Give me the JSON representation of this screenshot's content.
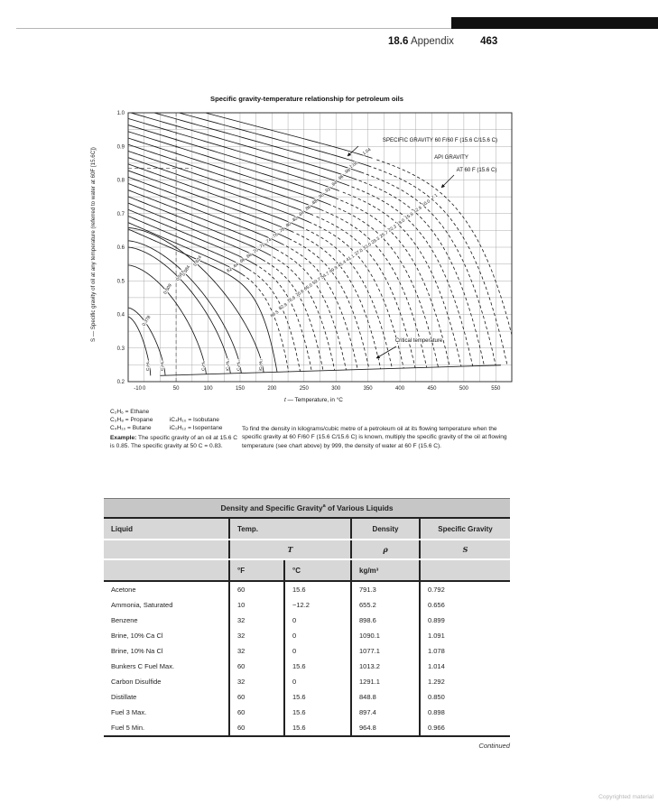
{
  "header": {
    "section": "18.6",
    "title": "Appendix",
    "page_number": "463"
  },
  "chart_data": {
    "type": "line",
    "title": "Specific gravity-temperature relationship for petroleum oils",
    "xlabel": "t — Temperature, in °C",
    "ylabel": "S — Specific gravity of oil  at any temperature (referred to water at 60F [15.6C])",
    "xlim": [
      -25,
      575
    ],
    "ylim": [
      0.2,
      1.0
    ],
    "x_ticks": [
      -10,
      0,
      50,
      100,
      150,
      200,
      250,
      300,
      350,
      400,
      450,
      500,
      550
    ],
    "y_ticks": [
      1.0,
      0.9,
      0.8,
      0.7,
      0.6,
      0.5,
      0.4,
      0.3,
      0.2
    ],
    "grid": true,
    "annotations": {
      "specific_gravity": "SPECIFIC GRAVITY 60 F/60 F (15.6 C/15.6 C)",
      "api_gravity_1": "API GRAVITY",
      "api_gravity_2": "AT 60 F (15.6 C)",
      "critical": "Critical temperature"
    },
    "sg_curves": [
      {
        "sg": 1.04,
        "label": "1.04",
        "api_label": ""
      },
      {
        "sg": 1.02,
        "label": "",
        "api_label": "7.1"
      },
      {
        "sg": 1.0,
        "label": "1.00",
        "api_label": "10.0"
      },
      {
        "sg": 0.98,
        "label": ".98",
        "api_label": "12.9"
      },
      {
        "sg": 0.96,
        "label": ".96",
        "api_label": "15.9"
      },
      {
        "sg": 0.94,
        "label": ".94",
        "api_label": "19.0"
      },
      {
        "sg": 0.92,
        "label": ".92",
        "api_label": "22.3"
      },
      {
        "sg": 0.9,
        "label": ".90",
        "api_label": "25.7"
      },
      {
        "sg": 0.88,
        "label": ".88",
        "api_label": "29.3"
      },
      {
        "sg": 0.86,
        "label": ".86",
        "api_label": "33.0"
      },
      {
        "sg": 0.84,
        "label": ".84",
        "api_label": "37.0"
      },
      {
        "sg": 0.82,
        "label": ".82",
        "api_label": "41.1"
      },
      {
        "sg": 0.8,
        "label": ".80",
        "api_label": "45.4"
      },
      {
        "sg": 0.78,
        "label": ".78",
        "api_label": "49.9"
      },
      {
        "sg": 0.76,
        "label": ".76",
        "api_label": "54.7"
      },
      {
        "sg": 0.74,
        "label": ".74",
        "api_label": "59.7"
      },
      {
        "sg": 0.72,
        "label": ".72",
        "api_label": "65.0"
      },
      {
        "sg": 0.7,
        "label": ".70",
        "api_label": "70.6"
      },
      {
        "sg": 0.68,
        "label": ".68",
        "api_label": "76.6"
      },
      {
        "sg": 0.66,
        "label": ".66",
        "api_label": "82.9"
      },
      {
        "sg": 0.64,
        "label": ".64",
        "api_label": "89.5"
      },
      {
        "sg": 0.62,
        "label": ".62",
        "api_label": ""
      }
    ],
    "light_curves": [
      {
        "sg": 0.35,
        "label": "",
        "name": "C₂H₄",
        "critical_temp_c": 10
      },
      {
        "sg": 0.378,
        "label": "0.378",
        "name": "C₂H₆",
        "critical_temp_c": 33
      },
      {
        "sg": 0.509,
        "label": "0.509",
        "name": "C₃H₈",
        "critical_temp_c": 97
      },
      {
        "sg": 0.564,
        "label": "0.564",
        "name": "iC₄H₁₀",
        "critical_temp_c": 135
      },
      {
        "sg": 0.584,
        "label": "0.584",
        "name": "C₄H₁₀",
        "critical_temp_c": 152
      },
      {
        "sg": 0.624,
        "label": "0.624",
        "name": "iC₅H₁₂",
        "critical_temp_c": 187
      }
    ],
    "example_lines": {
      "vertical_at_c": 50,
      "horizontal_at_s": 0.835
    }
  },
  "notes": {
    "legend": [
      [
        "C₂H₆ = Ethane",
        ""
      ],
      [
        "C₃H₈ = Propane",
        "iC₄H₁₀ = Isobutane"
      ],
      [
        "C₄H₁₀ = Butane",
        "iC₅H₁₂ = Isopentane"
      ]
    ],
    "example_label": "Example:",
    "example_text": " The specific gravity of an oil at 15.6 C is 0.85. The specific gravity at 50 C = 0.83.",
    "density_note": "To find the density in kilograms/cubic metre of a petroleum oil at its flowing temperature when the specific gravity at 60 F/60 F (15.6 C/15.6 C) is known, multiply the specific gravity of the oil at flowing temperature (see chart above) by 999, the density of water at 60 F (15.6 C)."
  },
  "table": {
    "title_1": "Density and Specific Gravity",
    "title_sup": "a",
    "title_2": " of Various Liquids",
    "col_liquid": "Liquid",
    "col_temp": "Temp.",
    "col_density": "Density",
    "col_sg": "Specific Gravity",
    "sym_temp": "T",
    "sym_density": "ρ",
    "sym_sg": "S",
    "unit_f": "°F",
    "unit_c": "°C",
    "unit_density": "kg/m³",
    "rows": [
      [
        "Acetone",
        "60",
        "15.6",
        "791.3",
        "0.792"
      ],
      [
        "Ammonia, Saturated",
        "10",
        "−12.2",
        "655.2",
        "0.656"
      ],
      [
        "Benzene",
        "32",
        "0",
        "898.6",
        "0.899"
      ],
      [
        "Brine, 10% Ca Cl",
        "32",
        "0",
        "1090.1",
        "1.091"
      ],
      [
        "Brine, 10% Na Cl",
        "32",
        "0",
        "1077.1",
        "1.078"
      ],
      [
        "Bunkers C Fuel Max.",
        "60",
        "15.6",
        "1013.2",
        "1.014"
      ],
      [
        "Carbon Disulfide",
        "32",
        "0",
        "1291.1",
        "1.292"
      ],
      [
        "Distillate",
        "60",
        "15.6",
        "848.8",
        "0.850"
      ],
      [
        "Fuel 3 Max.",
        "60",
        "15.6",
        "897.4",
        "0.898"
      ],
      [
        "Fuel 5 Min.",
        "60",
        "15.6",
        "964.8",
        "0.966"
      ]
    ]
  },
  "footer": {
    "continued": "Continued",
    "copyright": "Copyrighted material"
  }
}
